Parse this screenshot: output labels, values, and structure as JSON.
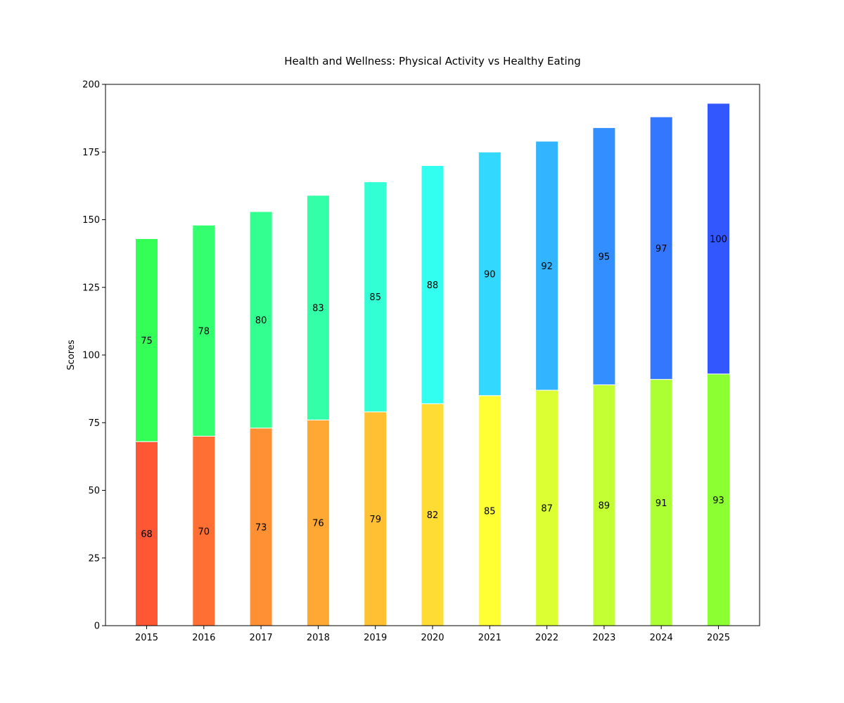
{
  "chart_data": {
    "type": "bar",
    "stacked": true,
    "title": "Health and Wellness: Physical Activity vs Healthy Eating",
    "xlabel": "",
    "ylabel": "Scores",
    "ylim": [
      0,
      200
    ],
    "yticks": [
      0,
      25,
      50,
      75,
      100,
      125,
      150,
      175,
      200
    ],
    "grid": false,
    "categories": [
      "2015",
      "2016",
      "2017",
      "2018",
      "2019",
      "2020",
      "2021",
      "2022",
      "2023",
      "2024",
      "2025"
    ],
    "series": [
      {
        "values": [
          68,
          70,
          73,
          76,
          79,
          82,
          85,
          87,
          89,
          91,
          93
        ],
        "colors": [
          "#ff5733",
          "#ff6f33",
          "#ff9033",
          "#ffa833",
          "#ffc133",
          "#ffdc33",
          "#ffff33",
          "#dbff33",
          "#c4ff33",
          "#acff33",
          "#8cff33"
        ]
      },
      {
        "values": [
          75,
          78,
          80,
          83,
          85,
          88,
          90,
          92,
          95,
          97,
          100
        ],
        "colors": [
          "#33ff57",
          "#33ff6f",
          "#33ff90",
          "#33ffa8",
          "#33ffd4",
          "#33fff0",
          "#33d8ff",
          "#33b4ff",
          "#338fff",
          "#3377ff",
          "#3357ff"
        ]
      }
    ],
    "bar_edge_color": "#ffffff",
    "data_labels": true
  }
}
